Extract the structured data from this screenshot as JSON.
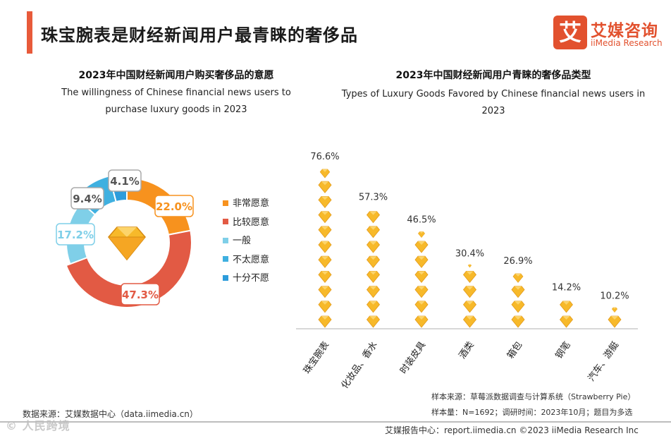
{
  "header": {
    "title": "珠宝腕表是财经新闻用户最青睐的奢侈品",
    "logo_mark": "艾",
    "logo_cn": "艾媒咨询",
    "logo_en": "iiMedia Research"
  },
  "left_chart": {
    "title_cn": "2023年中国财经新闻用户购买奢侈品的意愿",
    "title_en": "The willingness of Chinese financial news users to purchase luxury goods in 2023"
  },
  "right_chart": {
    "title_cn": "2023年中国财经新闻用户青睐的奢侈品类型",
    "title_en": "Types of Luxury Goods Favored by Chinese financial news users in 2023"
  },
  "chart_data": [
    {
      "type": "pie",
      "title": "2023年中国财经新闻用户购买奢侈品的意愿",
      "categories": [
        "非常愿意",
        "比较愿意",
        "一般",
        "不太愿意",
        "十分不愿"
      ],
      "values": [
        22.0,
        47.3,
        17.2,
        9.4,
        4.1
      ],
      "labels": [
        "22.0%",
        "47.3%",
        "17.2%",
        "9.4%",
        "4.1%"
      ],
      "colors": [
        "#f7921e",
        "#e25a44",
        "#7fcfe8",
        "#3fb0e0",
        "#2d9cdb"
      ],
      "legend_position": "right"
    },
    {
      "type": "bar",
      "title": "2023年中国财经新闻用户青睐的奢侈品类型",
      "categories": [
        "珠宝腕表",
        "化妆品、香水",
        "时装皮具",
        "酒类",
        "箱包",
        "钢笔",
        "汽车、游艇"
      ],
      "values": [
        76.6,
        57.3,
        46.5,
        30.4,
        26.9,
        14.2,
        10.2
      ],
      "labels": [
        "76.6%",
        "57.3%",
        "46.5%",
        "30.4%",
        "26.9%",
        "14.2%",
        "10.2%"
      ],
      "ylim": [
        0,
        80
      ],
      "unit": "%",
      "icon": "diamond-icon"
    }
  ],
  "colors": {
    "accent": "#e85a3a",
    "diamond": "#f7b92a"
  },
  "notes": {
    "sample_source": "样本来源：草莓派数据调查与计算系统（Strawberry Pie）",
    "sample_size": "样本量：N=1692；调研时间：2023年10月；题目为多选"
  },
  "source": "数据来源：艾媒数据中心（data.iimedia.cn）",
  "watermark": "© 人民跨境",
  "footer": "艾媒报告中心：report.iimedia.cn  ©2023  iiMedia Research  Inc"
}
